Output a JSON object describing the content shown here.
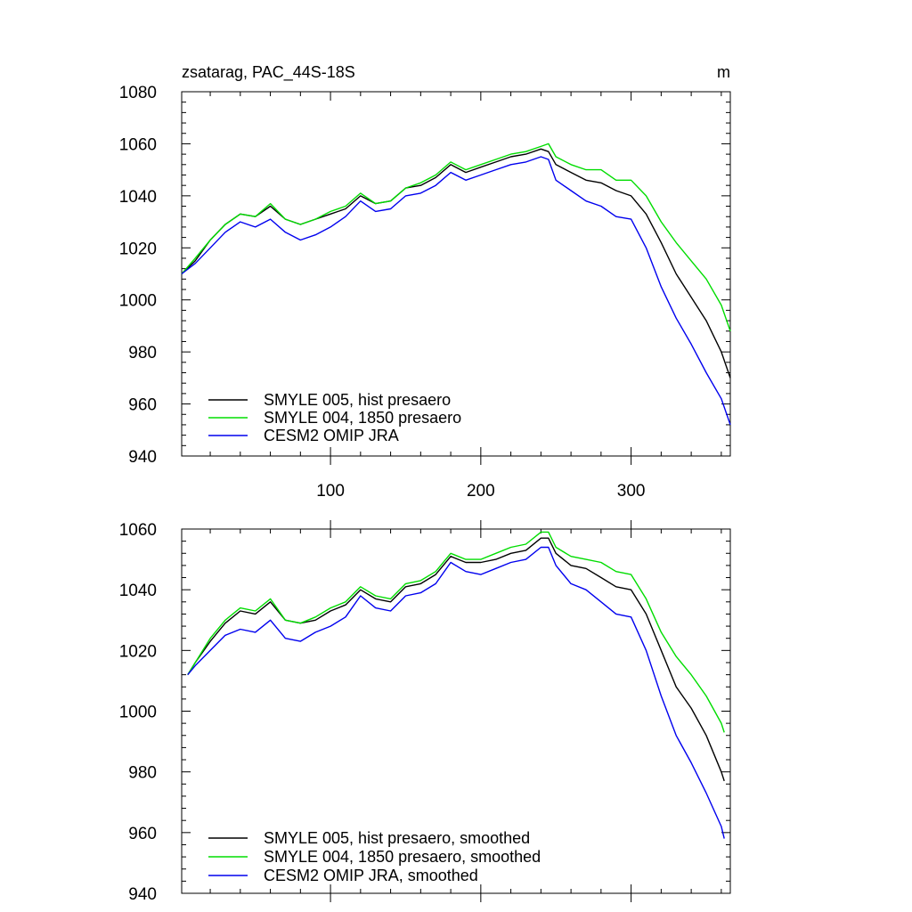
{
  "figure": {
    "title_left": "zsatarag, PAC_44S-18S",
    "title_right": "m"
  },
  "chart_data": [
    {
      "type": "line",
      "panel": "top",
      "xlim": [
        1,
        366
      ],
      "ylim": [
        940,
        1080
      ],
      "xticks": [
        100,
        200,
        300
      ],
      "yticks": [
        940,
        960,
        980,
        1000,
        1020,
        1040,
        1060,
        1080
      ],
      "grid": false,
      "legend_position": "bottom-left",
      "x": [
        1,
        10,
        20,
        30,
        40,
        50,
        60,
        70,
        80,
        90,
        100,
        110,
        120,
        130,
        140,
        150,
        160,
        170,
        180,
        190,
        200,
        210,
        220,
        230,
        240,
        245,
        250,
        260,
        270,
        280,
        290,
        300,
        310,
        320,
        330,
        340,
        350,
        360,
        366
      ],
      "series": [
        {
          "name": "SMYLE 005, hist presaero",
          "color": "#000000",
          "values": [
            1010,
            1015,
            1023,
            1029,
            1033,
            1032,
            1036,
            1031,
            1029,
            1031,
            1033,
            1035,
            1040,
            1037,
            1038,
            1043,
            1044,
            1047,
            1052,
            1049,
            1051,
            1053,
            1055,
            1056,
            1058,
            1057,
            1052,
            1049,
            1046,
            1045,
            1042,
            1040,
            1033,
            1022,
            1010,
            1001,
            992,
            980,
            970
          ]
        },
        {
          "name": "SMYLE 004, 1850 presaero",
          "color": "#00dd00",
          "values": [
            1010,
            1016,
            1023,
            1029,
            1033,
            1032,
            1037,
            1031,
            1029,
            1031,
            1034,
            1036,
            1041,
            1037,
            1038,
            1043,
            1045,
            1048,
            1053,
            1050,
            1052,
            1054,
            1056,
            1057,
            1059,
            1060,
            1055,
            1052,
            1050,
            1050,
            1046,
            1046,
            1040,
            1030,
            1022,
            1015,
            1008,
            998,
            988
          ]
        },
        {
          "name": "CESM2 OMIP JRA",
          "color": "#0000ee",
          "values": [
            1010,
            1014,
            1020,
            1026,
            1030,
            1028,
            1031,
            1026,
            1023,
            1025,
            1028,
            1032,
            1038,
            1034,
            1035,
            1040,
            1041,
            1044,
            1049,
            1046,
            1048,
            1050,
            1052,
            1053,
            1055,
            1054,
            1046,
            1042,
            1038,
            1036,
            1032,
            1031,
            1020,
            1005,
            993,
            983,
            972,
            962,
            952
          ]
        }
      ]
    },
    {
      "type": "line",
      "panel": "bottom",
      "xlim": [
        1,
        366
      ],
      "ylim": [
        940,
        1060
      ],
      "xticks": [
        100,
        200,
        300
      ],
      "yticks": [
        940,
        960,
        980,
        1000,
        1020,
        1040,
        1060
      ],
      "grid": false,
      "legend_position": "bottom-left",
      "x": [
        5,
        10,
        20,
        30,
        40,
        50,
        60,
        70,
        80,
        90,
        100,
        110,
        120,
        130,
        140,
        150,
        160,
        170,
        180,
        190,
        200,
        210,
        220,
        230,
        240,
        245,
        250,
        260,
        270,
        280,
        290,
        300,
        310,
        320,
        330,
        340,
        350,
        360,
        362
      ],
      "series": [
        {
          "name": "SMYLE 005, hist presaero, smoothed",
          "color": "#000000",
          "values": [
            1012,
            1016,
            1023,
            1029,
            1033,
            1032,
            1036,
            1030,
            1029,
            1030,
            1033,
            1035,
            1040,
            1037,
            1036,
            1041,
            1042,
            1045,
            1051,
            1049,
            1049,
            1050,
            1052,
            1053,
            1057,
            1057,
            1052,
            1048,
            1047,
            1044,
            1041,
            1040,
            1032,
            1020,
            1008,
            1001,
            992,
            980,
            977
          ]
        },
        {
          "name": "SMYLE 004, 1850 presaero, smoothed",
          "color": "#00dd00",
          "values": [
            1012,
            1016,
            1024,
            1030,
            1034,
            1033,
            1037,
            1030,
            1029,
            1031,
            1034,
            1036,
            1041,
            1038,
            1037,
            1042,
            1043,
            1046,
            1052,
            1050,
            1050,
            1052,
            1054,
            1055,
            1059,
            1059,
            1054,
            1051,
            1050,
            1049,
            1046,
            1045,
            1037,
            1026,
            1018,
            1012,
            1005,
            996,
            993
          ]
        },
        {
          "name": "CESM2 OMIP JRA, smoothed",
          "color": "#0000ee",
          "values": [
            1012,
            1015,
            1020,
            1025,
            1027,
            1026,
            1030,
            1024,
            1023,
            1026,
            1028,
            1031,
            1038,
            1034,
            1033,
            1038,
            1039,
            1042,
            1049,
            1046,
            1045,
            1047,
            1049,
            1050,
            1054,
            1054,
            1048,
            1042,
            1040,
            1036,
            1032,
            1031,
            1020,
            1005,
            992,
            983,
            973,
            962,
            958
          ]
        }
      ]
    }
  ]
}
